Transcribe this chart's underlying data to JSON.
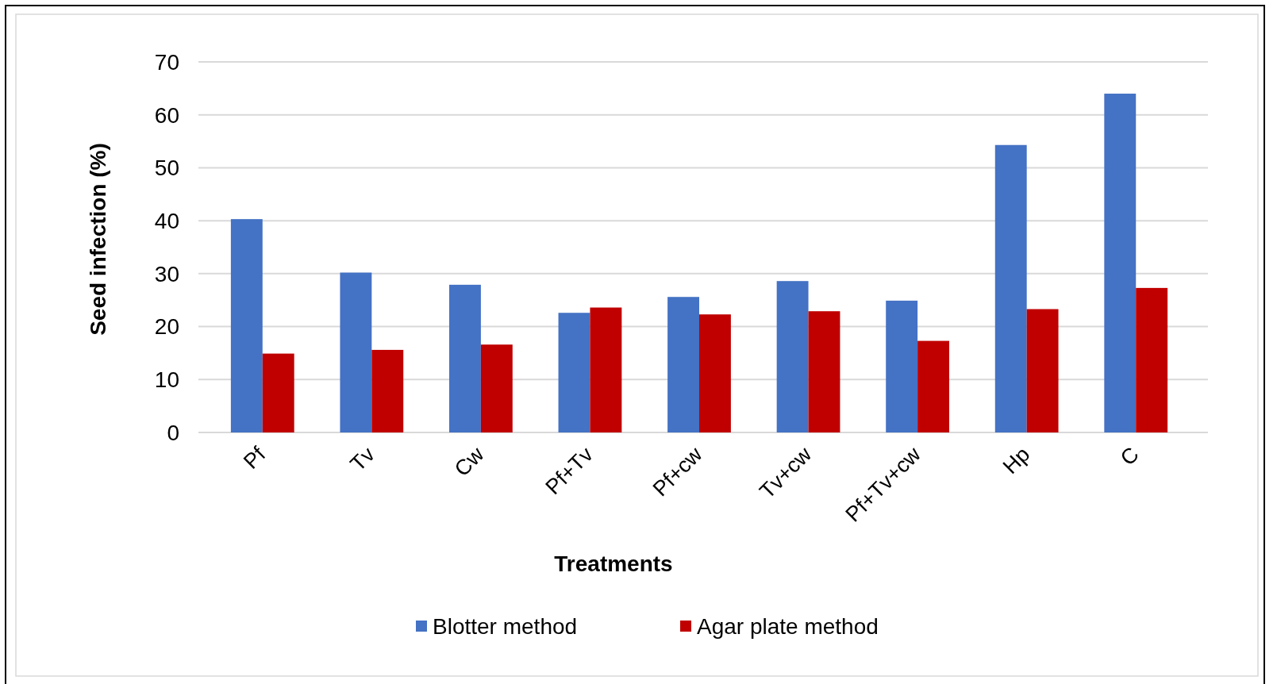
{
  "chart_data": {
    "type": "bar",
    "xlabel": "Treatments",
    "ylabel": "Seed infection (%)",
    "categories": [
      "Pf",
      "Tv",
      "Cw",
      "Pf+Tv",
      "Pf+cw",
      "Tv+cw",
      "Pf+Tv+cw",
      "Hp",
      "C"
    ],
    "series": [
      {
        "name": "Blotter method",
        "color": "#4472c4",
        "values": [
          40.3,
          30.2,
          27.9,
          22.6,
          25.6,
          28.6,
          24.9,
          54.3,
          64.0
        ]
      },
      {
        "name": "Agar plate method",
        "color": "#c00000",
        "values": [
          14.9,
          15.6,
          16.6,
          23.6,
          22.3,
          22.9,
          17.3,
          23.3,
          27.3
        ]
      }
    ],
    "ylim": [
      0,
      70
    ],
    "yticks": [
      0,
      10,
      20,
      30,
      40,
      50,
      60,
      70
    ],
    "grid": "y",
    "legend": "bottom"
  }
}
